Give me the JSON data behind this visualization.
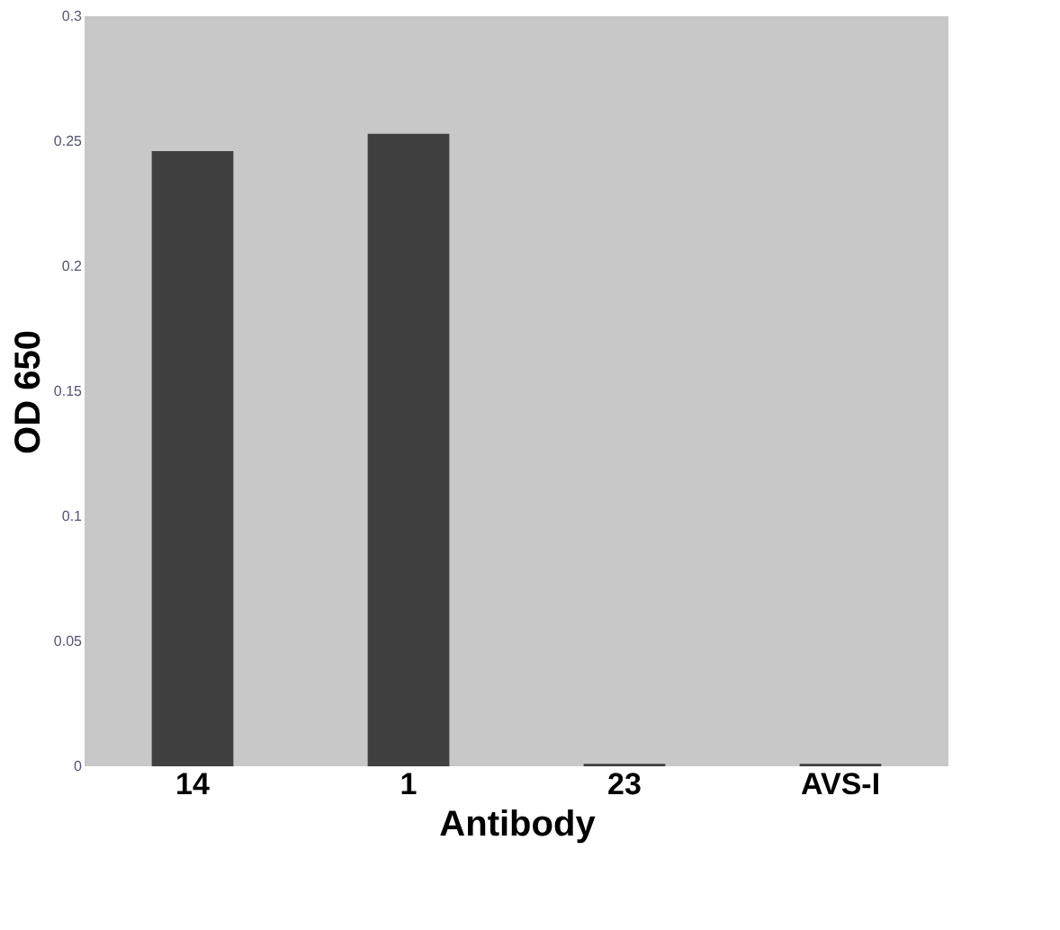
{
  "chart_data": {
    "type": "bar",
    "xlabel": "Antibody",
    "ylabel": "OD 650",
    "categories": [
      "14",
      "1",
      "23",
      "AVS-I"
    ],
    "values": [
      0.246,
      0.253,
      0.001,
      0.001
    ],
    "color": "#404040",
    "ylim": [
      0,
      0.3
    ],
    "yticks": [
      0,
      0.05,
      0.1,
      0.15,
      0.2,
      0.25,
      0.3
    ],
    "grid": false
  }
}
